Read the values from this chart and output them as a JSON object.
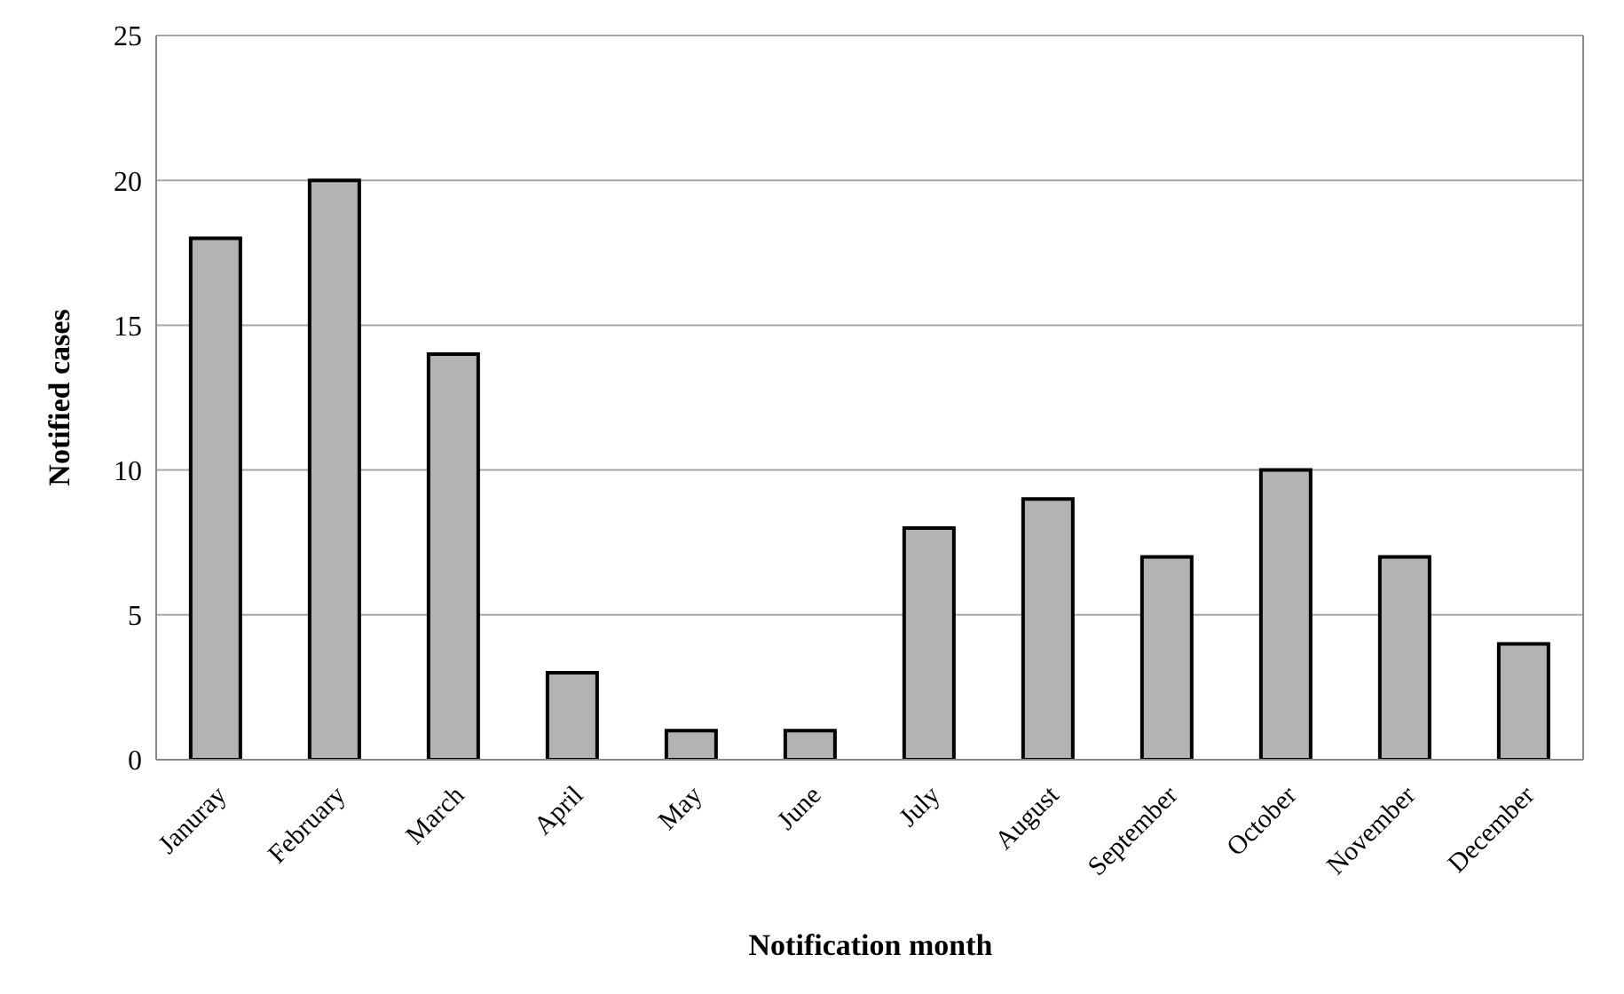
{
  "chart_data": {
    "type": "bar",
    "xlabel": "Notification month",
    "ylabel": "Notified cases",
    "categories": [
      "Januray",
      "February",
      "March",
      "April",
      "May",
      "June",
      "July",
      "August",
      "September",
      "October",
      "November",
      "December"
    ],
    "values": [
      18,
      20,
      14,
      3,
      1,
      1,
      8,
      9,
      7,
      10,
      7,
      4
    ],
    "color": "#b3b3b3",
    "ylim": [
      0,
      25
    ],
    "yticks": [
      0,
      5,
      10,
      15,
      20,
      25
    ],
    "grid": "y"
  }
}
